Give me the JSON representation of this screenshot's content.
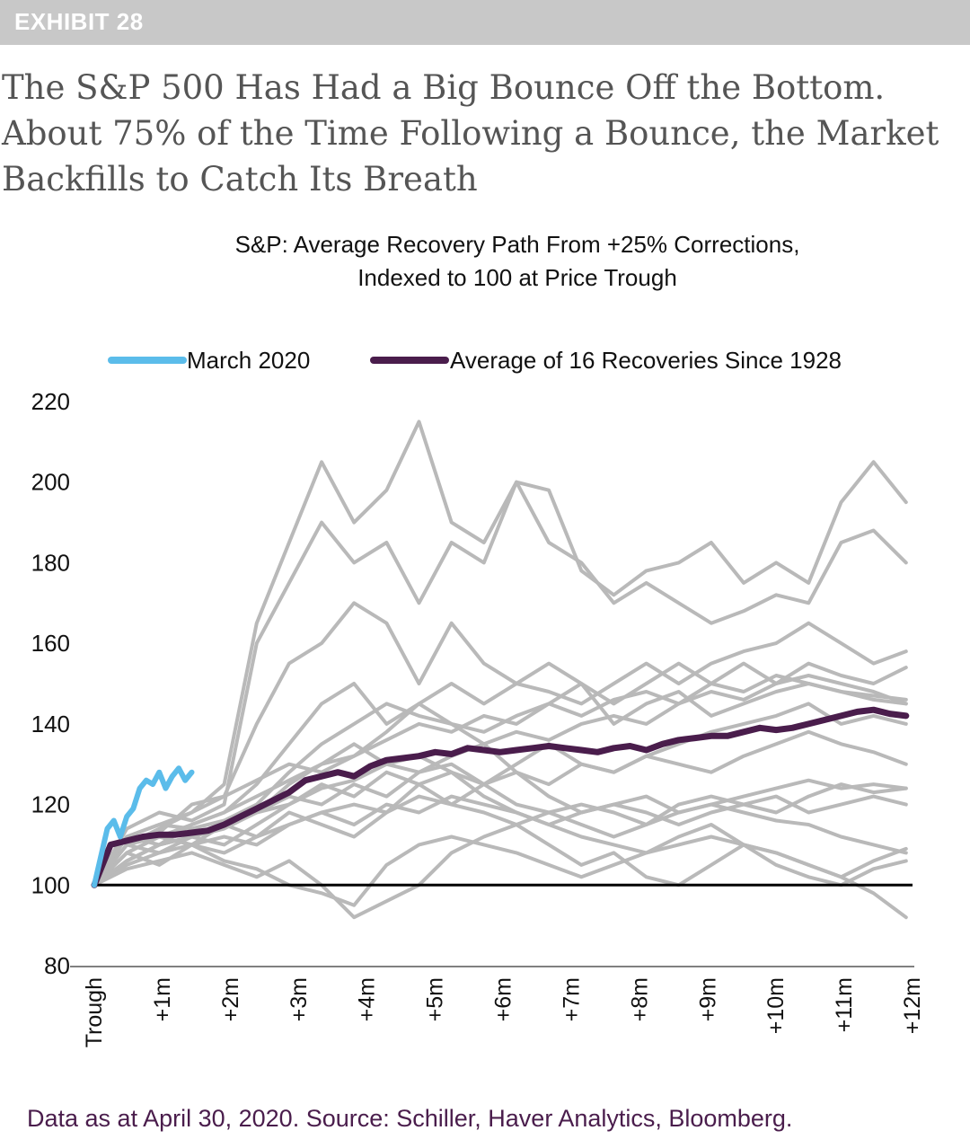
{
  "exhibit": {
    "label": "EXHIBIT 28"
  },
  "headline": {
    "lines": [
      "The S&P 500 Has Had a Big Bounce Off the Bottom.",
      "About 75% of the Time Following a Bounce, the Market",
      "Backfills to Catch Its Breath"
    ]
  },
  "chart_data": {
    "type": "line",
    "title": "S&P: Average Recovery Path From +25% Corrections,",
    "subtitle": "Indexed to 100 at Price Trough",
    "x_unit": "trading days from trough",
    "x_tick_labels": [
      "Trough",
      "+1m",
      "+2m",
      "+3m",
      "+4m",
      "+5m",
      "+6m",
      "+7m",
      "+8m",
      "+9m",
      "+10m",
      "+11m",
      "+12m"
    ],
    "x_range": [
      0,
      252
    ],
    "y_ticks": [
      80,
      100,
      120,
      140,
      160,
      180,
      200,
      220
    ],
    "ylim": [
      80,
      222
    ],
    "grid": false,
    "legend_position": "top",
    "reference_line": 100,
    "colors": {
      "march_2020": "#5bbcea",
      "average": "#4a1d4c",
      "individual": "#b9b9b9",
      "reference": "#000000"
    },
    "series": [
      {
        "name": "March 2020",
        "x": [
          0,
          2,
          4,
          6,
          8,
          10,
          12,
          14,
          16,
          18,
          20,
          22,
          24,
          26,
          28,
          30
        ],
        "values": [
          100,
          107,
          114,
          116,
          112,
          117,
          119,
          124,
          126,
          125,
          128,
          124,
          127,
          129,
          126,
          128
        ]
      },
      {
        "name": "Average of 16 Recoveries Since 1928",
        "x": [
          0,
          5,
          10,
          15,
          20,
          25,
          30,
          35,
          40,
          45,
          50,
          55,
          60,
          65,
          70,
          75,
          80,
          85,
          90,
          95,
          100,
          105,
          110,
          115,
          120,
          125,
          130,
          135,
          140,
          145,
          150,
          155,
          160,
          165,
          170,
          175,
          180,
          185,
          190,
          195,
          200,
          205,
          210,
          215,
          220,
          225,
          230,
          235,
          240,
          245,
          250
        ],
        "values": [
          100,
          110,
          111,
          112,
          112.5,
          112.5,
          113,
          113.5,
          115,
          117,
          119,
          121,
          123,
          126,
          127,
          128,
          127,
          129.5,
          131,
          131.5,
          132,
          133,
          132.5,
          134,
          133.5,
          133,
          133.5,
          134,
          134.5,
          134,
          133.5,
          133,
          134,
          134.5,
          133.5,
          135,
          136,
          136.5,
          137,
          137,
          138,
          139,
          138.5,
          139,
          140,
          141,
          142,
          143,
          143.5,
          142.5,
          142
        ]
      }
    ],
    "individual_recoveries": [
      {
        "x": [
          0,
          10,
          20,
          30,
          40,
          50,
          60,
          70,
          80,
          90,
          100,
          110,
          120,
          130,
          140,
          150,
          160,
          170,
          180,
          190,
          200,
          210,
          220,
          230,
          240,
          250
        ],
        "values": [
          100,
          112,
          115,
          118,
          125,
          165,
          185,
          205,
          190,
          198,
          215,
          190,
          185,
          200,
          198,
          178,
          172,
          178,
          180,
          185,
          175,
          180,
          175,
          195,
          205,
          195
        ]
      },
      {
        "x": [
          0,
          10,
          20,
          30,
          40,
          50,
          60,
          70,
          80,
          90,
          100,
          110,
          120,
          130,
          140,
          150,
          160,
          170,
          180,
          190,
          200,
          210,
          220,
          230,
          240,
          250
        ],
        "values": [
          100,
          114,
          118,
          116,
          120,
          160,
          175,
          190,
          180,
          185,
          170,
          185,
          180,
          200,
          185,
          180,
          170,
          175,
          170,
          165,
          168,
          172,
          170,
          185,
          188,
          180
        ]
      },
      {
        "x": [
          0,
          10,
          20,
          30,
          40,
          50,
          60,
          70,
          80,
          90,
          100,
          110,
          120,
          130,
          140,
          150,
          160,
          170,
          180,
          190,
          200,
          210,
          220,
          230,
          240,
          250
        ],
        "values": [
          100,
          110,
          113,
          120,
          122,
          140,
          155,
          160,
          170,
          165,
          150,
          165,
          155,
          150,
          148,
          145,
          150,
          155,
          150,
          155,
          158,
          160,
          165,
          160,
          155,
          158
        ]
      },
      {
        "x": [
          0,
          10,
          20,
          30,
          40,
          50,
          60,
          70,
          80,
          90,
          100,
          110,
          120,
          130,
          140,
          150,
          160,
          170,
          180,
          190,
          200,
          210,
          220,
          230,
          240,
          250
        ],
        "values": [
          100,
          108,
          112,
          115,
          118,
          125,
          135,
          145,
          150,
          140,
          145,
          150,
          145,
          150,
          155,
          150,
          145,
          150,
          155,
          150,
          155,
          150,
          155,
          152,
          150,
          154
        ]
      },
      {
        "x": [
          0,
          10,
          20,
          30,
          40,
          50,
          60,
          70,
          80,
          90,
          100,
          110,
          120,
          130,
          140,
          150,
          160,
          170,
          180,
          190,
          200,
          210,
          220,
          230,
          240,
          250
        ],
        "values": [
          100,
          112,
          115,
          114,
          116,
          120,
          128,
          135,
          140,
          145,
          142,
          140,
          138,
          142,
          145,
          150,
          140,
          145,
          148,
          142,
          145,
          148,
          150,
          148,
          146,
          145
        ]
      },
      {
        "x": [
          0,
          10,
          20,
          30,
          40,
          50,
          60,
          70,
          80,
          90,
          100,
          110,
          120,
          130,
          140,
          150,
          160,
          170,
          180,
          190,
          200,
          210,
          220,
          230,
          240,
          250
        ],
        "values": [
          100,
          106,
          110,
          112,
          115,
          118,
          125,
          130,
          135,
          130,
          132,
          128,
          125,
          130,
          135,
          130,
          128,
          132,
          135,
          138,
          140,
          142,
          145,
          140,
          142,
          140
        ]
      },
      {
        "x": [
          0,
          10,
          20,
          30,
          40,
          50,
          60,
          70,
          80,
          90,
          100,
          110,
          120,
          130,
          140,
          150,
          160,
          170,
          180,
          190,
          200,
          210,
          220,
          230,
          240,
          250
        ],
        "values": [
          100,
          110,
          108,
          112,
          110,
          115,
          120,
          125,
          122,
          128,
          125,
          120,
          125,
          128,
          125,
          130,
          128,
          132,
          130,
          128,
          132,
          135,
          138,
          135,
          133,
          130
        ]
      },
      {
        "x": [
          0,
          10,
          20,
          30,
          40,
          50,
          60,
          70,
          80,
          90,
          100,
          110,
          120,
          130,
          140,
          150,
          160,
          170,
          180,
          190,
          200,
          210,
          220,
          230,
          240,
          250
        ],
        "values": [
          100,
          108,
          112,
          110,
          108,
          112,
          115,
          118,
          120,
          118,
          122,
          120,
          118,
          115,
          118,
          120,
          118,
          115,
          120,
          122,
          120,
          118,
          122,
          125,
          123,
          124
        ]
      },
      {
        "x": [
          0,
          10,
          20,
          30,
          40,
          50,
          60,
          70,
          80,
          90,
          100,
          110,
          120,
          130,
          140,
          150,
          160,
          170,
          180,
          190,
          200,
          210,
          220,
          230,
          240,
          250
        ],
        "values": [
          100,
          105,
          108,
          110,
          112,
          110,
          115,
          118,
          115,
          120,
          118,
          122,
          120,
          118,
          115,
          118,
          120,
          118,
          115,
          118,
          120,
          122,
          118,
          120,
          122,
          120
        ]
      },
      {
        "x": [
          0,
          10,
          20,
          30,
          40,
          50,
          60,
          70,
          80,
          90,
          100,
          110,
          120,
          130,
          140,
          150,
          160,
          170,
          180,
          190,
          200,
          210,
          220,
          230,
          240,
          250
        ],
        "values": [
          100,
          110,
          112,
          110,
          106,
          104,
          100,
          98,
          95,
          105,
          110,
          112,
          110,
          108,
          105,
          102,
          105,
          108,
          110,
          112,
          110,
          108,
          105,
          102,
          106,
          109
        ]
      },
      {
        "x": [
          0,
          10,
          20,
          30,
          40,
          50,
          60,
          70,
          80,
          90,
          100,
          110,
          120,
          130,
          140,
          150,
          160,
          170,
          180,
          190,
          200,
          210,
          220,
          230,
          240,
          250
        ],
        "values": [
          100,
          104,
          106,
          108,
          105,
          102,
          106,
          100,
          92,
          96,
          100,
          108,
          112,
          115,
          110,
          105,
          108,
          102,
          100,
          105,
          110,
          108,
          105,
          102,
          98,
          92
        ]
      },
      {
        "x": [
          0,
          10,
          20,
          30,
          40,
          50,
          60,
          70,
          80,
          90,
          100,
          110,
          120,
          130,
          140,
          150,
          160,
          170,
          180,
          190,
          200,
          210,
          220,
          230,
          240,
          250
        ],
        "values": [
          100,
          106,
          110,
          112,
          115,
          112,
          118,
          115,
          112,
          118,
          125,
          128,
          122,
          118,
          115,
          112,
          110,
          108,
          112,
          115,
          110,
          105,
          102,
          100,
          104,
          106
        ]
      },
      {
        "x": [
          0,
          10,
          20,
          30,
          40,
          50,
          60,
          70,
          80,
          90,
          100,
          110,
          120,
          130,
          140,
          150,
          160,
          170,
          180,
          190,
          200,
          210,
          220,
          230,
          240,
          250
        ],
        "values": [
          100,
          112,
          110,
          115,
          118,
          122,
          126,
          130,
          132,
          138,
          145,
          140,
          135,
          128,
          122,
          118,
          120,
          122,
          118,
          120,
          122,
          124,
          126,
          124,
          125,
          124
        ]
      },
      {
        "x": [
          0,
          10,
          20,
          30,
          40,
          50,
          60,
          70,
          80,
          90,
          100,
          110,
          120,
          130,
          140,
          150,
          160,
          170,
          180,
          190,
          200,
          210,
          220,
          230,
          240,
          250
        ],
        "values": [
          100,
          108,
          105,
          110,
          115,
          118,
          122,
          120,
          125,
          122,
          128,
          130,
          125,
          120,
          118,
          115,
          112,
          115,
          118,
          120,
          118,
          116,
          115,
          112,
          110,
          108
        ]
      },
      {
        "x": [
          0,
          10,
          20,
          30,
          40,
          50,
          60,
          70,
          80,
          90,
          100,
          110,
          120,
          130,
          140,
          150,
          160,
          170,
          180,
          190,
          200,
          210,
          220,
          230,
          240,
          250
        ],
        "values": [
          100,
          110,
          114,
          118,
          122,
          126,
          130,
          128,
          132,
          136,
          140,
          138,
          142,
          140,
          145,
          142,
          146,
          148,
          145,
          150,
          148,
          152,
          150,
          148,
          147,
          146
        ]
      },
      {
        "x": [
          0,
          10,
          20,
          30,
          40,
          50,
          60,
          70,
          80,
          90,
          100,
          110,
          120,
          130,
          140,
          150,
          160,
          170,
          180,
          190,
          200,
          210,
          220,
          230,
          240,
          250
        ],
        "values": [
          100,
          106,
          110,
          112,
          114,
          118,
          120,
          124,
          126,
          130,
          128,
          132,
          135,
          138,
          136,
          140,
          142,
          140,
          145,
          148,
          146,
          150,
          152,
          150,
          148,
          145
        ]
      }
    ]
  },
  "footer": {
    "text": "Data as at April 30, 2020. Source: Schiller, Haver Analytics, Bloomberg."
  }
}
